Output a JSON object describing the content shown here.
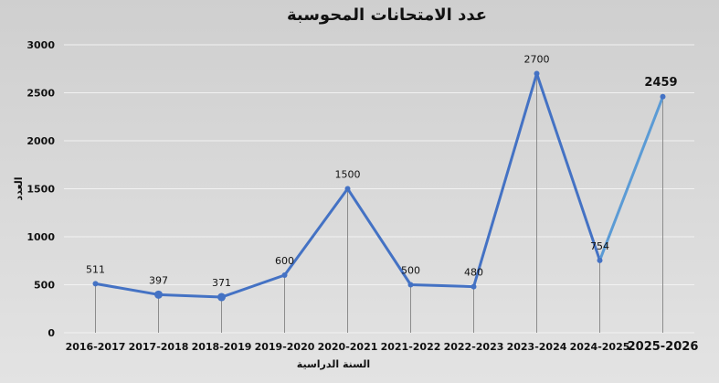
{
  "chart_data": {
    "type": "line",
    "title": "عدد الامتحانات المحوسبة",
    "xlabel": "السنة الدراسية",
    "ylabel": "العدد",
    "categories": [
      "2016-2017",
      "2017-2018",
      "2018-2019",
      "2019-2020",
      "2020-2021",
      "2021-2022",
      "2022-2023",
      "2023-2024",
      "2024-2025",
      "2025-2026"
    ],
    "values": [
      511,
      397,
      371,
      600,
      1500,
      500,
      480,
      2700,
      754,
      2459
    ],
    "data_labels": [
      "511",
      "397",
      "371",
      "600",
      "1500",
      "500",
      "480",
      "2700",
      "754",
      "2459"
    ],
    "ylim": [
      0,
      3000
    ],
    "yticks": [
      "0",
      "500",
      "1000",
      "1500",
      "2000",
      "2500",
      "3000"
    ],
    "grid": true,
    "legend": "none",
    "colors": {
      "line": "#4472c4",
      "line_last": "#5b9bd5",
      "grid": "#f2f2f2",
      "drop_line": "#8c8c8c",
      "text": "#111111"
    }
  }
}
